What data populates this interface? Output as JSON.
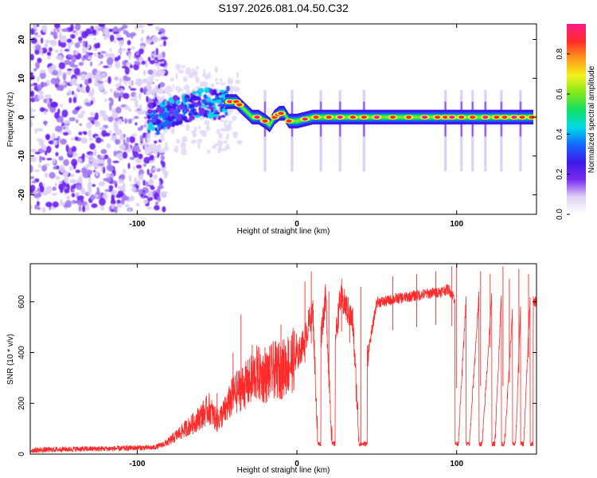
{
  "figure_title": "S197.2026.081.04.50.C32",
  "chart_data": [
    {
      "type": "heatmap",
      "title": "S197.2026.081.04.50.C32",
      "xlabel": "Height of straight line (km)",
      "ylabel": "Frequency (Hz)",
      "xlim": [
        -167,
        150
      ],
      "ylim": [
        -25,
        24
      ],
      "xticks": [
        -100,
        0,
        100
      ],
      "xtick_labels": [
        "-100",
        "0",
        "100"
      ],
      "yticks": [
        20,
        10,
        0,
        -10,
        -20
      ],
      "ytick_labels": [
        "20",
        "10",
        "0",
        "-10",
        "-20"
      ],
      "colorbar": {
        "label": "Normalized spectral amplitude",
        "range": [
          0.0,
          0.95
        ],
        "ticks": [
          0.0,
          0.2,
          0.4,
          0.6,
          0.8
        ],
        "tick_labels": [
          "0.0",
          "0.2",
          "0.4",
          "0.6",
          "0.8"
        ],
        "colormap": [
          "#ffffff",
          "#e0d4f6",
          "#7a2cf0",
          "#3b19e8",
          "#1565ff",
          "#00d8e8",
          "#10e06a",
          "#7ee81c",
          "#f2f21c",
          "#ff9a1a",
          "#ff2a2a",
          "#ff1a88"
        ]
      },
      "ridge_path": [
        [
          -88,
          -1
        ],
        [
          -80,
          1
        ],
        [
          -72,
          2
        ],
        [
          -65,
          3
        ],
        [
          -58,
          4
        ],
        [
          -50,
          3
        ],
        [
          -44,
          4
        ],
        [
          -38,
          4
        ],
        [
          -33,
          2
        ],
        [
          -28,
          0
        ],
        [
          -24,
          0
        ],
        [
          -20,
          -1
        ],
        [
          -17,
          -2
        ],
        [
          -14,
          0
        ],
        [
          -11,
          1
        ],
        [
          -8,
          1
        ],
        [
          -5,
          -1
        ],
        [
          0,
          -1
        ],
        [
          10,
          0
        ],
        [
          30,
          0
        ],
        [
          60,
          0
        ],
        [
          100,
          0
        ],
        [
          148,
          0
        ]
      ],
      "regions": [
        {
          "name": "noise",
          "x_range": [
            -167,
            -88
          ],
          "f_range": [
            -24,
            24
          ],
          "amplitude": 0.1
        },
        {
          "name": "scatter",
          "x_range": [
            -93,
            -45
          ],
          "f_range": [
            -4,
            8
          ],
          "amplitude": 0.4
        },
        {
          "name": "line",
          "x_range": [
            -45,
            148
          ],
          "f_range": [
            -1,
            1
          ],
          "amplitude": 0.9
        }
      ],
      "peaks_x": [
        -42,
        -38,
        -36,
        -25,
        -20,
        -14,
        -12,
        -10,
        -5,
        5,
        12,
        20,
        27,
        35,
        42,
        50,
        60,
        70,
        80,
        88,
        93,
        97,
        103,
        110,
        118,
        125,
        130,
        136,
        141,
        147
      ],
      "vertical_streaks_x": [
        -20,
        -3,
        15,
        27,
        42,
        93,
        103,
        110,
        118,
        128,
        140
      ]
    },
    {
      "type": "line",
      "xlabel": "Height of straight line (km)",
      "ylabel": "SNR (10 * v/v)",
      "xlim": [
        -167,
        150
      ],
      "ylim": [
        0,
        750
      ],
      "xticks": [
        -100,
        0,
        100
      ],
      "xtick_labels": [
        "-100",
        "0",
        "100"
      ],
      "yticks": [
        0,
        200,
        400,
        600
      ],
      "ytick_labels": [
        "0",
        "200",
        "400",
        "600"
      ],
      "series": [
        {
          "name": "SNR",
          "color": "#ff2a2a",
          "x": [
            -167,
            -140,
            -110,
            -100,
            -90,
            -85,
            -80,
            -75,
            -70,
            -65,
            -60,
            -55,
            -50,
            -45,
            -40,
            -35,
            -30,
            -25,
            -20,
            -15,
            -10,
            -5,
            0,
            5,
            8,
            10,
            13,
            14,
            18,
            22,
            24,
            27,
            30,
            35,
            39,
            41,
            44,
            46,
            50,
            55,
            60,
            70,
            80,
            90,
            95,
            99,
            101,
            106,
            108,
            114,
            116,
            122,
            124,
            128,
            130,
            135,
            137,
            140,
            142,
            146,
            149
          ],
          "values": [
            15,
            20,
            22,
            25,
            25,
            35,
            50,
            75,
            100,
            120,
            150,
            180,
            130,
            170,
            230,
            260,
            280,
            320,
            300,
            330,
            330,
            360,
            380,
            450,
            530,
            560,
            50,
            420,
            620,
            40,
            450,
            610,
            590,
            520,
            40,
            40,
            390,
            450,
            600,
            600,
            610,
            620,
            630,
            640,
            650,
            610,
            40,
            620,
            40,
            630,
            40,
            620,
            40,
            630,
            40,
            560,
            40,
            580,
            40,
            620,
            600
          ],
          "spikes": [
            [
              -50,
              240
            ],
            [
              -40,
              400
            ],
            [
              -35,
              550
            ],
            [
              -28,
              430
            ],
            [
              -20,
              420
            ],
            [
              -10,
              510
            ],
            [
              5,
              680
            ],
            [
              9,
              720
            ],
            [
              20,
              640
            ],
            [
              28,
              690
            ],
            [
              33,
              580
            ],
            [
              40,
              660
            ],
            [
              60,
              700
            ],
            [
              75,
              710
            ],
            [
              87,
              720
            ],
            [
              97,
              740
            ],
            [
              100,
              750
            ],
            [
              115,
              720
            ],
            [
              121,
              710
            ],
            [
              129,
              740
            ],
            [
              133,
              690
            ],
            [
              139,
              730
            ],
            [
              145,
              710
            ]
          ],
          "dropouts": [
            [
              13,
              15
            ],
            [
              22,
              24
            ],
            [
              39,
              44
            ],
            [
              99,
              101
            ],
            [
              106,
              108
            ],
            [
              114,
              116
            ],
            [
              122,
              124
            ],
            [
              128,
              130
            ],
            [
              135,
              137
            ],
            [
              140,
              142
            ],
            [
              146,
              148
            ]
          ],
          "noise_amplitude": 20
        }
      ]
    }
  ]
}
